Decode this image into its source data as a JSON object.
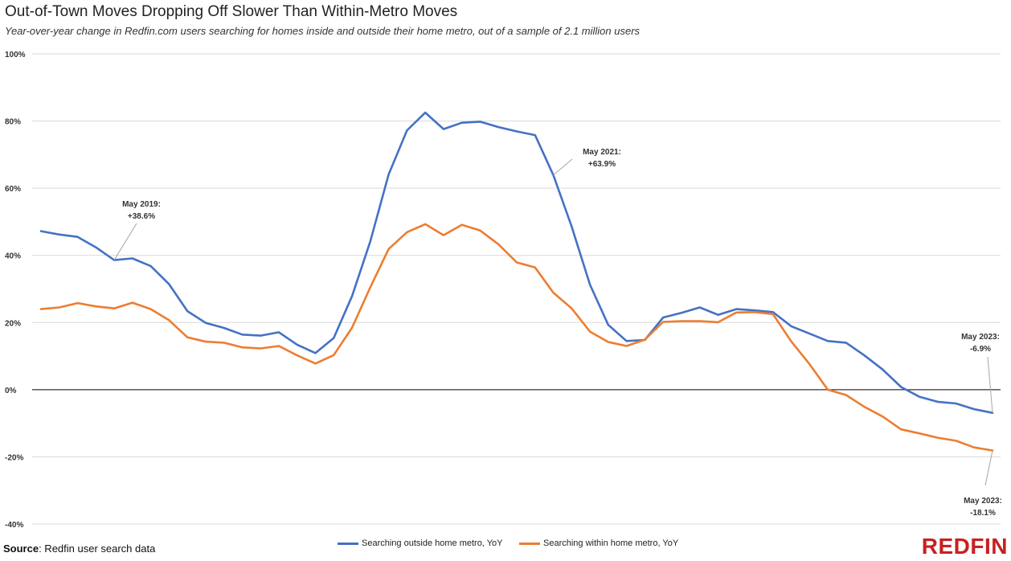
{
  "title": "Out-of-Town Moves Dropping Off Slower Than Within-Metro Moves",
  "subtitle": "Year-over-year change in Redfin.com users searching for homes inside and outside their home metro, out of a sample of 2.1 million users",
  "source_label": "Source",
  "source_text": ": Redfin user search data",
  "brand": "REDFIN",
  "colors": {
    "outside": "#4472c4",
    "within": "#ed7d31",
    "grid": "#d9d9d9",
    "zero": "#000000",
    "brand": "#c82021"
  },
  "chart_data": {
    "type": "line",
    "ylim": [
      -40,
      100
    ],
    "yticks": [
      -40,
      -20,
      0,
      20,
      40,
      60,
      80,
      100
    ],
    "ytick_labels": [
      "-40%",
      "-20%",
      "0%",
      "20%",
      "40%",
      "60%",
      "80%",
      "100%"
    ],
    "grid": true,
    "legend_position": "bottom",
    "x_count": 60,
    "series": [
      {
        "name": "Searching outside home metro, YoY",
        "values": [
          47.2,
          46.2,
          45.5,
          42.4,
          38.6,
          39.1,
          36.8,
          31.4,
          23.4,
          19.9,
          18.4,
          16.4,
          16.1,
          17.1,
          13.4,
          10.9,
          15.4,
          27.9,
          44.2,
          64.1,
          77.2,
          82.5,
          77.6,
          79.5,
          79.8,
          78.2,
          76.9,
          75.8,
          63.9,
          48.6,
          31.3,
          19.3,
          14.5,
          14.8,
          21.5,
          22.9,
          24.5,
          22.3,
          24.0,
          23.6,
          23.1,
          18.9,
          16.7,
          14.5,
          14.0,
          10.2,
          6.0,
          0.8,
          -2.1,
          -3.6,
          -4.1,
          -5.8,
          -6.9
        ],
        "color": "#4472c4"
      },
      {
        "name": "Searching within home metro, YoY",
        "values": [
          24.0,
          24.5,
          25.8,
          24.8,
          24.2,
          25.9,
          24.0,
          20.7,
          15.6,
          14.3,
          14.0,
          12.6,
          12.3,
          13.0,
          10.2,
          7.8,
          10.3,
          18.5,
          30.5,
          41.9,
          46.9,
          49.3,
          46.0,
          49.1,
          47.4,
          43.3,
          37.9,
          36.4,
          28.9,
          24.2,
          17.3,
          14.2,
          13.0,
          14.9,
          20.2,
          20.4,
          20.4,
          20.1,
          23.0,
          23.1,
          22.5,
          14.4,
          7.6,
          0.0,
          -1.6,
          -5.1,
          -8.0,
          -11.8,
          -13.0,
          -14.3,
          -15.2,
          -17.2,
          -18.1
        ],
        "color": "#ed7d31"
      }
    ],
    "annotations": [
      {
        "series": 0,
        "index": 4,
        "line1": "May 2019:",
        "line2": "+38.6%"
      },
      {
        "series": 0,
        "index": 28,
        "line1": "May 2021:",
        "line2": "+63.9%"
      },
      {
        "series": 0,
        "index": 52,
        "line1": "May 2023:",
        "line2": "-6.9%"
      },
      {
        "series": 1,
        "index": 52,
        "line1": "May 2023:",
        "line2": "-18.1%"
      }
    ]
  }
}
